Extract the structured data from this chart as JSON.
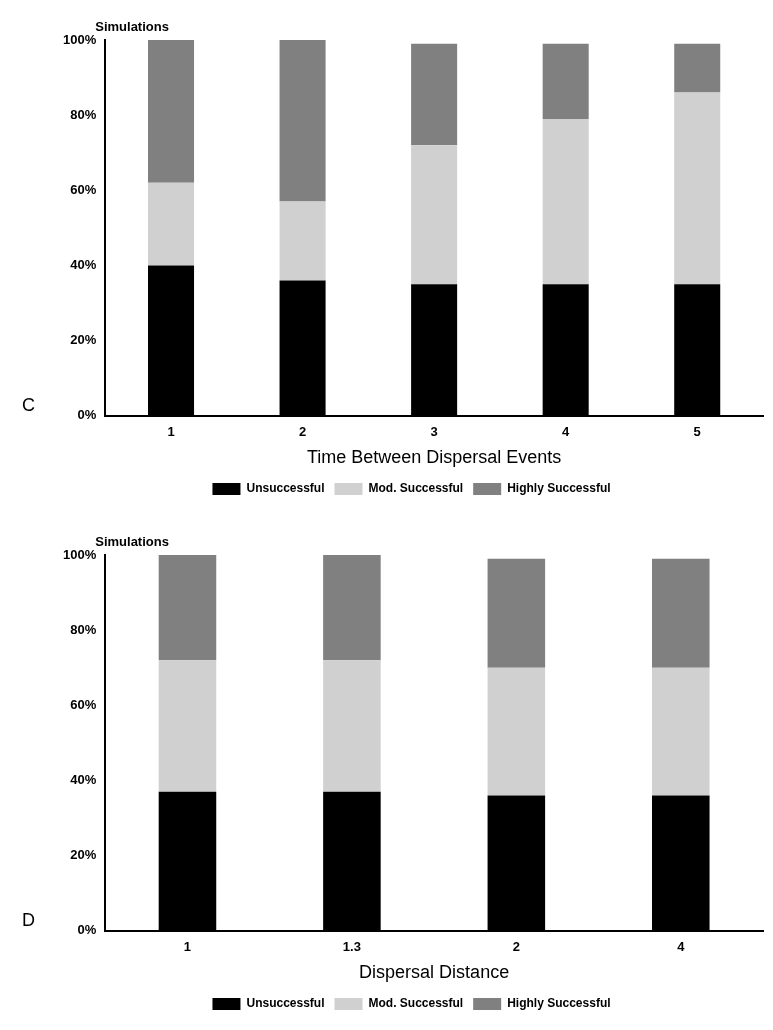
{
  "chart_data": [
    {
      "type": "bar",
      "stacked": true,
      "ylabel": "Simulations",
      "xlabel": "Time Between Dispersal Events",
      "annotations": [
        "C"
      ],
      "categories": [
        "1",
        "2",
        "3",
        "4",
        "5"
      ],
      "ylim": [
        0,
        100
      ],
      "yticks": [
        {
          "value": 0,
          "label": "0%"
        },
        {
          "value": 20,
          "label": "20%"
        },
        {
          "value": 40,
          "label": "40%"
        },
        {
          "value": 60,
          "label": "60%"
        },
        {
          "value": 80,
          "label": "80%"
        },
        {
          "value": 100,
          "label": "100%"
        }
      ],
      "grid": false,
      "legend": "bottom",
      "series": [
        {
          "name": "Unsuccessful",
          "color": "#000000",
          "values": [
            40,
            36,
            35,
            35,
            35
          ]
        },
        {
          "name": "Mod. Successful",
          "color": "#d0d0d0",
          "values": [
            22,
            21,
            37,
            44,
            51
          ]
        },
        {
          "name": "Highly Successful",
          "color": "#808080",
          "values": [
            38,
            43,
            27,
            20,
            13
          ]
        }
      ]
    },
    {
      "type": "bar",
      "stacked": true,
      "ylabel": "Simulations",
      "xlabel": "Dispersal Distance",
      "annotations": [
        "D"
      ],
      "categories": [
        "1",
        "1.3",
        "2",
        "4"
      ],
      "ylim": [
        0,
        100
      ],
      "yticks": [
        {
          "value": 0,
          "label": "0%"
        },
        {
          "value": 20,
          "label": "20%"
        },
        {
          "value": 40,
          "label": "40%"
        },
        {
          "value": 60,
          "label": "60%"
        },
        {
          "value": 80,
          "label": "80%"
        },
        {
          "value": 100,
          "label": "100%"
        }
      ],
      "grid": false,
      "legend": "bottom",
      "series": [
        {
          "name": "Unsuccessful",
          "color": "#000000",
          "values": [
            37,
            37,
            36,
            36
          ]
        },
        {
          "name": "Mod. Successful",
          "color": "#d0d0d0",
          "values": [
            35,
            35,
            34,
            34
          ]
        },
        {
          "name": "Highly Successful",
          "color": "#808080",
          "values": [
            28,
            28,
            29,
            29
          ]
        }
      ]
    }
  ]
}
